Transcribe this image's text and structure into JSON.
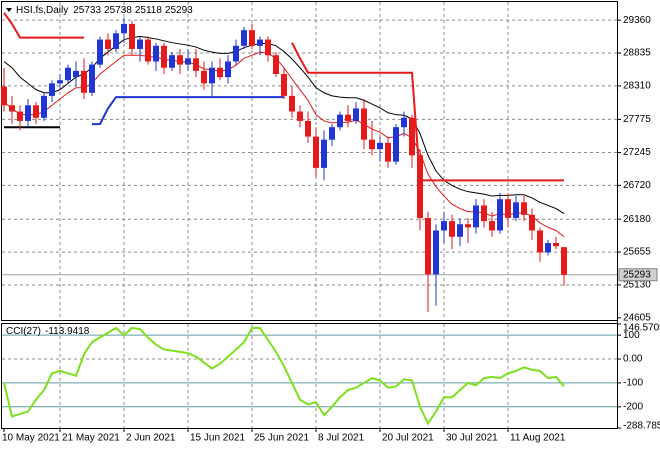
{
  "chart_data": [
    {
      "type": "candlestick",
      "title": "HSI.fs,Daily",
      "categories": [
        "10 May 2021",
        null,
        null,
        null,
        null,
        null,
        null,
        "21 May 2021",
        null,
        null,
        null,
        null,
        null,
        null,
        null,
        "2 Jun 2021",
        null,
        null,
        null,
        null,
        null,
        null,
        null,
        "15 Jun 2021",
        null,
        null,
        null,
        null,
        null,
        null,
        null,
        "25 Jun 2021",
        null,
        null,
        null,
        null,
        null,
        null,
        null,
        "8 Jul 2021",
        null,
        null,
        null,
        null,
        null,
        null,
        null,
        "20 Jul 2021",
        null,
        null,
        null,
        null,
        null,
        null,
        null,
        "30 Jul 2021",
        null,
        null,
        null,
        null,
        null,
        null,
        null,
        "11 Aug 2021",
        null,
        null,
        null,
        null,
        null,
        null,
        null
      ],
      "open": [
        28300,
        28000,
        27900,
        27750,
        28000,
        27800,
        28150,
        28350,
        28400,
        28450,
        28550,
        28200,
        28650,
        29050,
        28900,
        29150,
        29300,
        28900,
        29050,
        28700,
        28950,
        28600,
        28800,
        28650,
        28750,
        28550,
        28350,
        28600,
        28450,
        28700,
        28950,
        29200,
        28950,
        29050,
        28800,
        28500,
        28150,
        27900,
        27750,
        27500,
        27000,
        27450,
        27650,
        27850,
        27750,
        27950,
        27450,
        27300,
        27400,
        27100,
        27650,
        27800,
        27200,
        26200,
        25300,
        26000,
        26150,
        25900,
        26100,
        26050,
        26400,
        26150,
        26000,
        26500,
        26200,
        26450,
        26250,
        26000,
        25650,
        25800,
        25733
      ],
      "high": [
        28600,
        28150,
        28000,
        28100,
        28050,
        28200,
        28400,
        28500,
        28650,
        28700,
        28750,
        28700,
        29100,
        29150,
        29200,
        29400,
        29350,
        29100,
        29100,
        29000,
        29000,
        28850,
        28900,
        28900,
        28900,
        28700,
        28700,
        28750,
        28800,
        29050,
        29250,
        29300,
        29100,
        29100,
        28850,
        28600,
        28300,
        28000,
        27900,
        27650,
        27600,
        27700,
        27900,
        28000,
        28050,
        28100,
        27750,
        27500,
        27500,
        27700,
        27900,
        27850,
        27300,
        26300,
        26100,
        26300,
        26250,
        26200,
        26200,
        26500,
        26500,
        26300,
        26600,
        26600,
        26550,
        26550,
        26350,
        26050,
        25850,
        25900,
        25738
      ],
      "low": [
        27900,
        27700,
        27600,
        27650,
        27700,
        27750,
        28050,
        28250,
        28350,
        28300,
        28100,
        28150,
        28600,
        28800,
        28850,
        29000,
        28800,
        28700,
        28650,
        28550,
        28500,
        28550,
        28500,
        28550,
        28450,
        28250,
        28150,
        28400,
        28350,
        28650,
        28900,
        28900,
        28800,
        28700,
        28450,
        28100,
        27800,
        27650,
        27400,
        26850,
        26800,
        27350,
        27600,
        27650,
        27700,
        27300,
        27200,
        27100,
        27000,
        27050,
        27500,
        27000,
        26000,
        24700,
        24800,
        25800,
        25700,
        25750,
        25800,
        25950,
        26050,
        25900,
        25950,
        26050,
        26150,
        26150,
        25850,
        25500,
        25600,
        25700,
        25118
      ],
      "close": [
        28000,
        27900,
        27750,
        28000,
        27800,
        28150,
        28350,
        28400,
        28600,
        28550,
        28200,
        28650,
        29050,
        28900,
        29150,
        29300,
        28900,
        29050,
        28700,
        28950,
        28600,
        28800,
        28650,
        28750,
        28550,
        28350,
        28600,
        28450,
        28700,
        28950,
        29200,
        28950,
        29050,
        28800,
        28500,
        28150,
        27900,
        27750,
        27500,
        27000,
        27450,
        27650,
        27850,
        27750,
        27950,
        27450,
        27300,
        27400,
        27100,
        27650,
        27800,
        27200,
        26200,
        25300,
        26000,
        26150,
        25900,
        26100,
        26050,
        26400,
        26150,
        26000,
        26500,
        26200,
        26450,
        26250,
        26000,
        25650,
        25800,
        25750,
        25293
      ],
      "up_color": "#1f35d6",
      "down_color": "#e51a1a",
      "ylim": [
        24570,
        29650
      ],
      "yticks": [
        24605,
        25130,
        25655,
        26180,
        26720,
        27245,
        27775,
        28310,
        28835,
        29360
      ],
      "grid": true,
      "series": [
        {
          "color": "#e51a1a",
          "values": [
            28050,
            27950,
            27850,
            27850,
            27850,
            27900,
            28000,
            28100,
            28200,
            28280,
            28280,
            28350,
            28500,
            28600,
            28700,
            28800,
            28800,
            28800,
            28780,
            28770,
            28730,
            28720,
            28700,
            28690,
            28650,
            28580,
            28570,
            28540,
            28570,
            28640,
            28750,
            28800,
            28850,
            28830,
            28750,
            28600,
            28420,
            28250,
            28080,
            27850,
            27750,
            27720,
            27730,
            27730,
            27760,
            27700,
            27620,
            27570,
            27480,
            27500,
            27550,
            27480,
            27250,
            26900,
            26700,
            26550,
            26420,
            26350,
            26300,
            26300,
            26280,
            26230,
            26270,
            26250,
            26280,
            26280,
            26230,
            26120,
            26050,
            26000,
            25900
          ]
        },
        {
          "color": "#000000",
          "values": [
            28700,
            28600,
            28450,
            28350,
            28250,
            28200,
            28200,
            28250,
            28350,
            28450,
            28500,
            28600,
            28750,
            28850,
            28950,
            29050,
            29080,
            29100,
            29080,
            29060,
            29030,
            29000,
            28980,
            28960,
            28930,
            28880,
            28850,
            28830,
            28830,
            28860,
            28920,
            28960,
            28990,
            28990,
            28950,
            28860,
            28740,
            28600,
            28450,
            28280,
            28200,
            28150,
            28130,
            28120,
            28120,
            28080,
            28020,
            27960,
            27880,
            27850,
            27840,
            27780,
            27550,
            27200,
            26950,
            26800,
            26720,
            26660,
            26620,
            26600,
            26580,
            26550,
            26560,
            26560,
            26570,
            26570,
            26520,
            26450,
            26400,
            26350,
            26270
          ]
        },
        {
          "color": "#e51a1a",
          "width": 2,
          "values": [
            29480,
            29300,
            29080,
            29080,
            29080,
            29080,
            29080,
            29080,
            29080,
            29080,
            29080,
            null,
            null,
            null,
            null,
            null,
            null,
            null,
            null,
            null,
            null,
            null,
            null,
            null,
            null,
            null,
            null,
            null,
            null,
            null,
            null,
            null,
            null,
            null,
            null,
            null,
            29000,
            28750,
            28520,
            28520,
            28520,
            28520,
            28520,
            28520,
            28520,
            28520,
            28520,
            28520,
            28520,
            28520,
            28520,
            28520,
            26800,
            26800,
            26800,
            26800,
            26800,
            26800,
            26800,
            26800,
            26800,
            26800,
            26800,
            26800,
            26800,
            26800,
            26800,
            26800,
            26800,
            26800,
            26800
          ]
        },
        {
          "color": "#1f35d6",
          "width": 2,
          "values": [
            null,
            null,
            null,
            null,
            null,
            null,
            null,
            null,
            null,
            null,
            null,
            27700,
            27700,
            27950,
            28130,
            28130,
            28130,
            28130,
            28130,
            28130,
            28130,
            28130,
            28130,
            28130,
            28130,
            28130,
            28130,
            28130,
            28130,
            28130,
            28130,
            28130,
            28130,
            28130,
            28130,
            28130,
            null,
            null,
            null,
            null,
            null,
            null,
            null,
            null,
            null,
            null,
            null,
            null,
            null,
            null,
            null,
            null,
            null,
            null,
            null,
            null,
            null,
            null,
            null,
            null,
            null,
            null,
            null,
            null,
            null,
            null,
            null,
            null,
            null,
            null,
            null
          ]
        },
        {
          "color": "#000000",
          "width": 2,
          "values": [
            27650,
            27650,
            27650,
            27650,
            27650,
            27650,
            27650,
            27650,
            null,
            null,
            null,
            null,
            null,
            null,
            null,
            null,
            null,
            null,
            null,
            null,
            null,
            null,
            null,
            null,
            null,
            null,
            null,
            null,
            null,
            null,
            null,
            null,
            null,
            null,
            null,
            null,
            null,
            null,
            null,
            null,
            null,
            null,
            null,
            null,
            null,
            null,
            null,
            null,
            null,
            null,
            null,
            null,
            null,
            null,
            null,
            null,
            null,
            null,
            null,
            null,
            null,
            null,
            null,
            null,
            null,
            null,
            null,
            null,
            null,
            null,
            null
          ]
        }
      ]
    },
    {
      "type": "line",
      "title": "CCI(27)",
      "color": "#7ee01e",
      "values": [
        -100,
        -240,
        -230,
        -220,
        -170,
        -130,
        -60,
        -50,
        -60,
        -70,
        20,
        70,
        90,
        110,
        130,
        100,
        130,
        125,
        90,
        60,
        40,
        35,
        30,
        25,
        10,
        -15,
        -40,
        -20,
        10,
        40,
        70,
        130,
        130,
        80,
        30,
        -30,
        -100,
        -170,
        -190,
        -180,
        -235,
        -200,
        -160,
        -130,
        -120,
        -100,
        -80,
        -90,
        -120,
        -115,
        -85,
        -90,
        -200,
        -270,
        -220,
        -160,
        -160,
        -130,
        -100,
        -110,
        -80,
        -75,
        -80,
        -60,
        -50,
        -35,
        -45,
        -50,
        -80,
        -75,
        -113.9418
      ],
      "ylim": [
        -288.785,
        146.5705
      ],
      "yticks": [
        -288.785,
        -200,
        -100,
        {
          "value": 0,
          "label": "0.00"
        },
        100,
        146.5705
      ]
    }
  ]
}
